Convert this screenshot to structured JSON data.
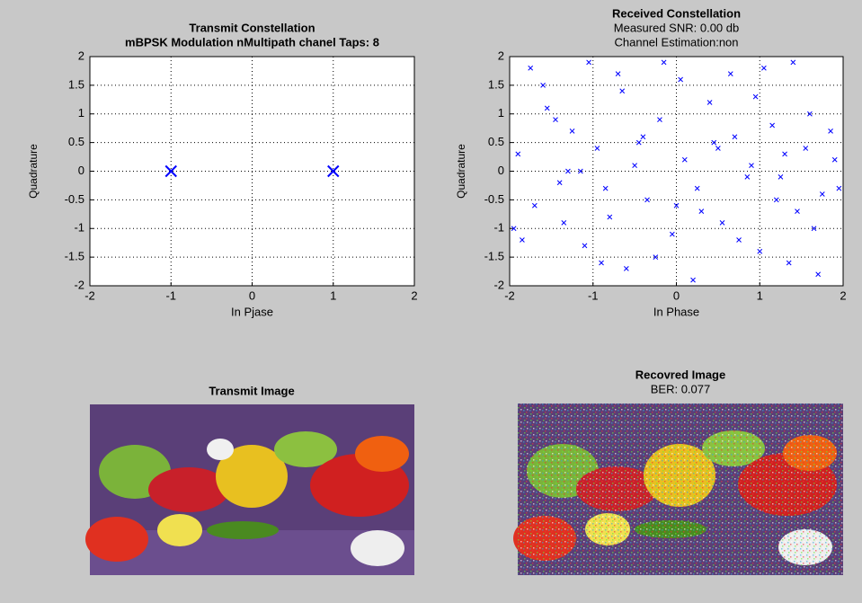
{
  "chart_data": [
    {
      "type": "scatter",
      "title": "Transmit Constellation",
      "subtitle": "mBPSK Modulation nMultipath chanel Taps: 8",
      "x_label": "In Pjase",
      "y_label": "Quadrature",
      "marker": "x",
      "color": "#0000ff",
      "x": [
        -1,
        1
      ],
      "values": [
        0,
        0
      ],
      "xlim": [
        -2,
        2
      ],
      "ylim": [
        -2,
        2
      ],
      "xticks": [
        -2,
        -1,
        0,
        1,
        2
      ],
      "yticks": [
        -2,
        -1.5,
        -1,
        -0.5,
        0,
        0.5,
        1,
        1.5,
        2
      ],
      "grid": true
    },
    {
      "type": "scatter",
      "title": "Received Constellation",
      "subtitle": "Measured SNR: 0.00 db",
      "subtitle2": "Channel Estimation:non",
      "x_label": "In Phase",
      "y_label": "Quadrature",
      "marker": "x",
      "color": "#0000ff",
      "x": [
        -1.9,
        -1.7,
        -1.55,
        -1.4,
        -1.25,
        -1.1,
        -0.95,
        -0.8,
        -0.65,
        -0.5,
        -0.35,
        -0.2,
        -0.05,
        0.1,
        0.25,
        0.4,
        0.55,
        0.7,
        0.85,
        1.0,
        1.15,
        1.3,
        1.45,
        1.6,
        1.75,
        1.9,
        -1.85,
        -1.6,
        -1.35,
        -1.15,
        -0.9,
        -0.7,
        -0.45,
        -0.25,
        0.05,
        0.3,
        0.5,
        0.75,
        0.95,
        1.2,
        1.4,
        1.65,
        1.85,
        -1.75,
        -1.45,
        -1.05,
        -0.6,
        -0.15,
        0.2,
        0.65,
        1.05,
        1.35,
        1.7,
        -1.95,
        -1.3,
        -0.85,
        -0.4,
        0.0,
        0.45,
        0.9,
        1.25,
        1.55,
        1.95
      ],
      "values": [
        0.3,
        -0.6,
        1.1,
        -0.2,
        0.7,
        -1.3,
        0.4,
        -0.8,
        1.4,
        0.1,
        -0.5,
        0.9,
        -1.1,
        0.2,
        -0.3,
        1.2,
        -0.9,
        0.6,
        -0.1,
        -1.4,
        0.8,
        0.3,
        -0.7,
        1.0,
        -0.4,
        0.2,
        -1.2,
        1.5,
        -0.9,
        0.0,
        -1.6,
        1.7,
        0.5,
        -1.5,
        1.6,
        -0.7,
        0.4,
        -1.2,
        1.3,
        -0.5,
        1.9,
        -1.0,
        0.7,
        1.8,
        0.9,
        1.9,
        -1.7,
        1.9,
        -1.9,
        1.7,
        1.8,
        -1.6,
        -1.8,
        -1.0,
        0.0,
        -0.3,
        0.6,
        -0.6,
        0.5,
        0.1,
        -0.1,
        0.4,
        -0.3
      ],
      "xlim": [
        -2,
        2
      ],
      "ylim": [
        -2,
        2
      ],
      "xticks": [
        -2,
        -1,
        0,
        1,
        2
      ],
      "yticks": [
        -2,
        -1.5,
        -1,
        -0.5,
        0,
        0.5,
        1,
        1.5,
        2
      ],
      "grid": true
    }
  ],
  "images": [
    {
      "title": "Transmit Image"
    },
    {
      "title": "Recovred Image",
      "subtitle": "BER: 0.077"
    }
  ]
}
